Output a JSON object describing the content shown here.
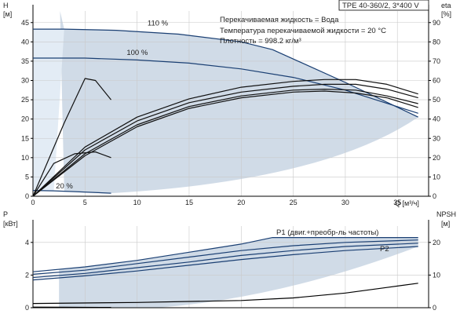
{
  "chart_data": [
    {
      "type": "line",
      "panel": "head-efficiency",
      "model_label": "TPE 40-360/2, 3*400 V",
      "info_lines": [
        "Перекачиваемая жидкость = Вода",
        "Температура перекачиваемой жидкости = 20 °C",
        "Плотность = 998.2 кг/м³"
      ],
      "xlabel": "Q [м³/ч]",
      "xlim": [
        0,
        38
      ],
      "xticks": [
        0,
        5,
        10,
        15,
        20,
        25,
        30,
        35
      ],
      "ylabel_left": "H",
      "ylabel_left_unit": "[м]",
      "ylim_left": [
        0,
        48
      ],
      "yticks_left": [
        0,
        5,
        10,
        15,
        20,
        25,
        30,
        35,
        40,
        45
      ],
      "ylabel_right": "eta",
      "ylabel_right_unit": "[%]",
      "ylim_right": [
        0,
        96
      ],
      "yticks_right": [
        0,
        10,
        20,
        30,
        40,
        50,
        60,
        70,
        80,
        90
      ],
      "grid": true,
      "operating_area_color": "#c8d5e3",
      "series": [
        {
          "name": "110 %",
          "axis": "left",
          "color": "#1a3f73",
          "x": [
            0,
            3,
            8,
            14,
            20,
            23,
            30,
            37
          ],
          "y": [
            43.3,
            43.3,
            43.0,
            42.0,
            40.0,
            38.0,
            29.5,
            20.5
          ]
        },
        {
          "name": "100 %",
          "axis": "left",
          "color": "#1a3f73",
          "x": [
            0,
            5,
            10,
            15,
            20,
            25,
            30,
            37
          ],
          "y": [
            35.8,
            35.8,
            35.3,
            34.5,
            33.0,
            30.8,
            27.5,
            21.5
          ]
        },
        {
          "name": "20 %",
          "axis": "left",
          "color": "#1a3f73",
          "x": [
            0,
            2,
            4,
            7.5
          ],
          "y": [
            1.5,
            1.4,
            1.2,
            0.8
          ]
        },
        {
          "axis": "right",
          "color": "#111111",
          "x": [
            0,
            5,
            10,
            15,
            20,
            25,
            28,
            31,
            34,
            37
          ],
          "y": [
            0,
            22,
            37,
            46.5,
            52,
            55,
            55.5,
            55,
            52,
            48
          ]
        },
        {
          "axis": "right",
          "color": "#111111",
          "x": [
            0,
            5,
            10,
            15,
            20,
            25,
            28,
            31,
            34,
            37
          ],
          "y": [
            0,
            21,
            36,
            45.5,
            51,
            54,
            54.5,
            53.5,
            51,
            46
          ]
        },
        {
          "axis": "right",
          "color": "#111111",
          "x": [
            0,
            5,
            10,
            15,
            20,
            25,
            28,
            31,
            34,
            37
          ],
          "y": [
            0,
            24,
            39,
            48.5,
            54,
            57,
            58,
            58,
            55.5,
            51
          ]
        },
        {
          "axis": "right",
          "color": "#111111",
          "x": [
            0,
            5,
            10,
            15,
            20,
            25,
            28,
            31,
            34,
            37
          ],
          "y": [
            0,
            25.5,
            41,
            50.5,
            56.5,
            59.5,
            60.5,
            60.5,
            58,
            53
          ]
        },
        {
          "axis": "right",
          "color": "#111111",
          "x": [
            0,
            2,
            4,
            6,
            7.5
          ],
          "y": [
            0,
            17,
            22,
            23,
            20
          ]
        },
        {
          "axis": "right",
          "color": "#111111",
          "x": [
            0,
            3,
            5,
            6,
            7.5
          ],
          "y": [
            0,
            38,
            61,
            60,
            50
          ]
        }
      ]
    },
    {
      "type": "line",
      "panel": "power-npsh",
      "xlim": [
        0,
        38
      ],
      "ylabel_left": "P",
      "ylabel_left_unit": "[кВт]",
      "ylim_left": [
        0,
        5
      ],
      "yticks_left": [
        0,
        2,
        4
      ],
      "ylabel_right": "NPSH",
      "ylabel_right_unit": "[м]",
      "ylim_right": [
        0,
        25
      ],
      "yticks_right": [
        0,
        10,
        20
      ],
      "grid": true,
      "annotations": [
        "P1 (двиг.+преобр-ль частоты)",
        "P2"
      ],
      "series": [
        {
          "name": "P1 (двиг.+преобр-ль частоты)",
          "axis": "left",
          "color": "#1a3f73",
          "x": [
            0,
            5,
            10,
            15,
            20,
            23,
            30,
            37
          ],
          "y": [
            2.2,
            2.5,
            2.9,
            3.4,
            3.9,
            4.3,
            4.3,
            4.3
          ]
        },
        {
          "axis": "left",
          "color": "#1a3f73",
          "x": [
            0,
            5,
            10,
            15,
            20,
            25,
            30,
            37
          ],
          "y": [
            2.05,
            2.3,
            2.7,
            3.1,
            3.5,
            3.8,
            4.0,
            4.15
          ]
        },
        {
          "name": "P2",
          "axis": "left",
          "color": "#1a3f73",
          "x": [
            0,
            5,
            10,
            15,
            20,
            25,
            30,
            37
          ],
          "y": [
            1.85,
            2.1,
            2.45,
            2.8,
            3.2,
            3.5,
            3.75,
            3.95
          ]
        },
        {
          "axis": "left",
          "color": "#1a3f73",
          "x": [
            0,
            5,
            10,
            15,
            20,
            25,
            30,
            37
          ],
          "y": [
            1.7,
            1.95,
            2.25,
            2.6,
            2.95,
            3.25,
            3.5,
            3.75
          ]
        },
        {
          "name": "NPSH",
          "axis": "right",
          "color": "#000000",
          "x": [
            0,
            10,
            20,
            25,
            30,
            34,
            37
          ],
          "y": [
            1.3,
            1.6,
            2.2,
            3.0,
            4.5,
            6.2,
            7.5
          ]
        },
        {
          "axis": "right",
          "color": "#000000",
          "x": [
            0,
            3,
            7.5
          ],
          "y": [
            0.2,
            0.15,
            0.1
          ]
        }
      ]
    }
  ]
}
